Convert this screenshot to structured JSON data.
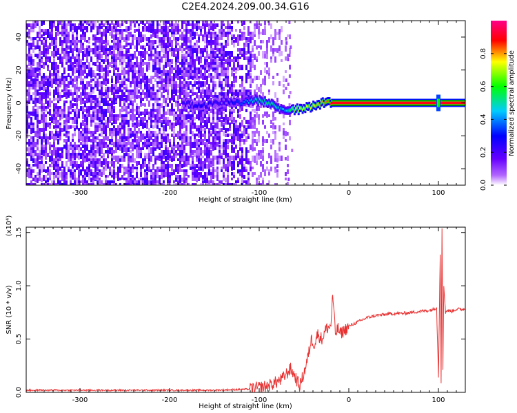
{
  "title": "C2E4.2024.209.00.34.G16",
  "chart_data": [
    {
      "type": "heatmap",
      "xlabel": "Height of straight line (km)",
      "ylabel": "Frequency (Hz)",
      "xlim": [
        -360,
        130
      ],
      "ylim": [
        -50,
        50
      ],
      "xticks": [
        -300,
        -200,
        -100,
        0,
        100
      ],
      "yticks": [
        -40,
        -20,
        0,
        20,
        40
      ],
      "colorbar": {
        "label": "Normalized spectral amplitude",
        "range": [
          0,
          1
        ],
        "ticks": [
          0.0,
          0.2,
          0.4,
          0.6,
          0.8
        ],
        "tick_labels": [
          "0.0",
          "0.2",
          "0.4",
          "0.6",
          "0.8"
        ],
        "colormap": [
          "#ffffff",
          "#8a00ff",
          "#0000ff",
          "#00ccff",
          "#00ff00",
          "#ffff00",
          "#ff0000",
          "#ff00aa"
        ]
      },
      "noise_region_x": [
        -360,
        -65
      ],
      "signal_track": [
        {
          "x": -185,
          "y": 0,
          "amp": 0.25
        },
        {
          "x": -165,
          "y": -2,
          "amp": 0.3
        },
        {
          "x": -140,
          "y": 1,
          "amp": 0.25
        },
        {
          "x": -120,
          "y": 0,
          "amp": 0.35
        },
        {
          "x": -105,
          "y": 2,
          "amp": 0.5
        },
        {
          "x": -90,
          "y": 0,
          "amp": 0.55
        },
        {
          "x": -80,
          "y": -3,
          "amp": 0.5
        },
        {
          "x": -70,
          "y": -5,
          "amp": 0.45
        },
        {
          "x": -60,
          "y": -4,
          "amp": 0.7
        },
        {
          "x": -45,
          "y": -3,
          "amp": 0.75
        },
        {
          "x": -30,
          "y": 0,
          "amp": 0.8
        },
        {
          "x": -15,
          "y": 0,
          "amp": 0.9
        },
        {
          "x": 0,
          "y": 0,
          "amp": 0.9
        },
        {
          "x": 50,
          "y": 0,
          "amp": 0.9
        },
        {
          "x": 95,
          "y": 0,
          "amp": 0.9
        },
        {
          "x": 130,
          "y": 0,
          "amp": 0.9
        }
      ]
    },
    {
      "type": "line",
      "xlabel": "Height of straight line (km)",
      "ylabel": "SNR (10 * v/v)",
      "scale_label": "(x10⁴)",
      "xlim": [
        -360,
        130
      ],
      "ylim": [
        0,
        1.55
      ],
      "xticks": [
        -300,
        -200,
        -100,
        0,
        100
      ],
      "yticks": [
        0.0,
        0.5,
        1.0,
        1.5
      ],
      "ytick_labels": [
        "0.0",
        "0.5",
        "1.0",
        "1.5"
      ],
      "line_color": "#e83030",
      "series": [
        {
          "x": [
            -360,
            -250,
            -150,
            -110,
            -90,
            -75,
            -65,
            -60,
            -55,
            -50,
            -45,
            -42,
            -38,
            -35,
            -30,
            -25,
            -20,
            -18,
            -15,
            -12,
            -10,
            -5,
            0,
            10,
            20,
            30,
            40,
            50,
            60,
            70,
            80,
            90,
            95,
            98,
            100,
            102,
            103,
            104,
            105,
            106,
            108,
            110,
            115,
            120,
            130
          ],
          "y": [
            0.02,
            0.02,
            0.02,
            0.03,
            0.06,
            0.12,
            0.22,
            0.15,
            0.06,
            0.18,
            0.35,
            0.5,
            0.45,
            0.55,
            0.5,
            0.6,
            0.62,
            0.92,
            0.55,
            0.6,
            0.55,
            0.58,
            0.62,
            0.66,
            0.7,
            0.72,
            0.73,
            0.74,
            0.74,
            0.75,
            0.76,
            0.77,
            0.78,
            0.8,
            0.15,
            1.3,
            0.1,
            1.55,
            0.2,
            1.0,
            0.75,
            0.77,
            0.76,
            0.78,
            0.78
          ]
        }
      ]
    }
  ]
}
